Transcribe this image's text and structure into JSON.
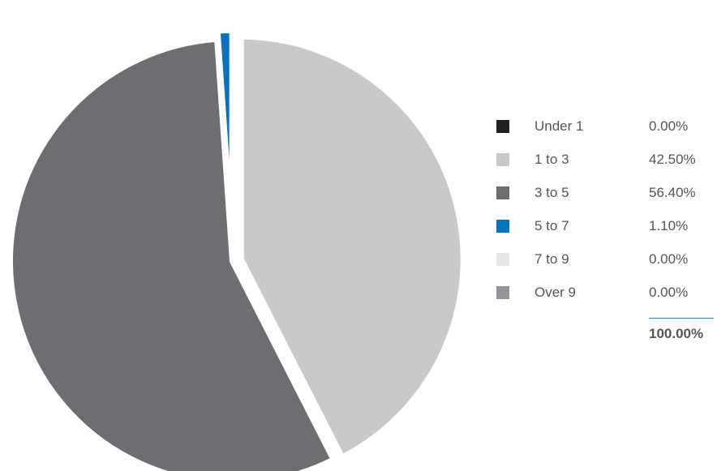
{
  "chart_data": {
    "type": "pie",
    "categories": [
      "Under 1",
      "1 to 3",
      "3 to 5",
      "5 to 7",
      "7 to 9",
      "Over 9"
    ],
    "values": [
      0.0,
      42.5,
      56.4,
      1.1,
      0.0,
      0.0
    ],
    "value_labels": [
      "0.00%",
      "42.50%",
      "56.40%",
      "1.10%",
      "0.00%",
      "0.00%"
    ],
    "colors": [
      "#231f20",
      "#c8c9cb",
      "#6d6e71",
      "#0a73be",
      "#e6e7e8",
      "#939598"
    ],
    "exploded_slices": [
      "1 to 3",
      "5 to 7"
    ],
    "legend_position": "right",
    "total_label": "100.00%"
  }
}
